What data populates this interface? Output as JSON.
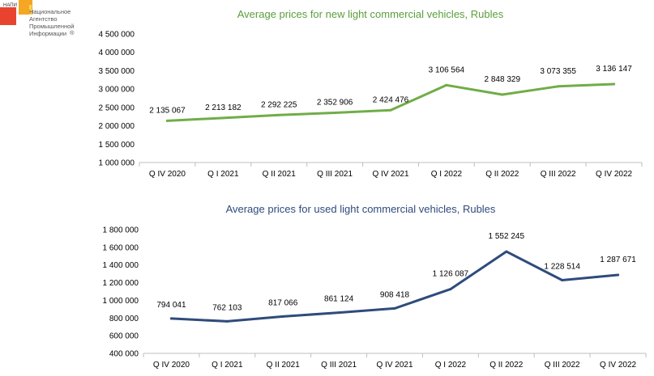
{
  "logo": {
    "abbr": "НАПИ",
    "line1": "Национальное",
    "line2": "Агентство",
    "line3": "Промышленной",
    "line4": "Информации",
    "reg": "®",
    "colors": {
      "red": "#e8432e",
      "orange": "#f5a623",
      "yellow": "#ffd45a"
    }
  },
  "chart_data": [
    {
      "type": "line",
      "title": "Average prices for new light commercial vehicles, Rubles",
      "title_color": "#5a9e3a",
      "line_color": "#70ad47",
      "categories": [
        "Q IV 2020",
        "Q I 2021",
        "Q II 2021",
        "Q III 2021",
        "Q IV 2021",
        "Q I 2022",
        "Q II 2022",
        "Q III 2022",
        "Q IV 2022"
      ],
      "values": [
        2135067,
        2213182,
        2292225,
        2352906,
        2424476,
        3106564,
        2848329,
        3073355,
        3136147
      ],
      "value_labels": [
        "2 135 067",
        "2 213 182",
        "2 292 225",
        "2 352 906",
        "2 424 476",
        "3 106 564",
        "2 848 329",
        "3 073 355",
        "3 136 147"
      ],
      "ylim": [
        1000000,
        4500000
      ],
      "yticks": [
        1000000,
        1500000,
        2000000,
        2500000,
        3000000,
        3500000,
        4000000,
        4500000
      ],
      "ytick_labels": [
        "1 000 000",
        "1 500 000",
        "2 000 000",
        "2 500 000",
        "3 000 000",
        "3 500 000",
        "4 000 000",
        "4 500 000"
      ],
      "xlabel": "",
      "ylabel": "",
      "grid": false
    },
    {
      "type": "line",
      "title": "Average prices for used light commercial vehicles, Rubles",
      "title_color": "#2f4b7c",
      "line_color": "#2f4b7c",
      "categories": [
        "Q IV 2020",
        "Q I 2021",
        "Q II 2021",
        "Q III 2021",
        "Q IV 2021",
        "Q I 2022",
        "Q II 2022",
        "Q III 2022",
        "Q IV 2022"
      ],
      "values": [
        794041,
        762103,
        817066,
        861124,
        908418,
        1126087,
        1552245,
        1228514,
        1287671
      ],
      "value_labels": [
        "794 041",
        "762 103",
        "817 066",
        "861 124",
        "908 418",
        "1 126 087",
        "1 552 245",
        "1 228 514",
        "1 287 671"
      ],
      "ylim": [
        400000,
        1800000
      ],
      "yticks": [
        400000,
        600000,
        800000,
        1000000,
        1200000,
        1400000,
        1600000,
        1800000
      ],
      "ytick_labels": [
        "400 000",
        "600 000",
        "800 000",
        "1 000 000",
        "1 200 000",
        "1 400 000",
        "1 600 000",
        "1 800 000"
      ],
      "xlabel": "",
      "ylabel": "",
      "grid": false
    }
  ]
}
